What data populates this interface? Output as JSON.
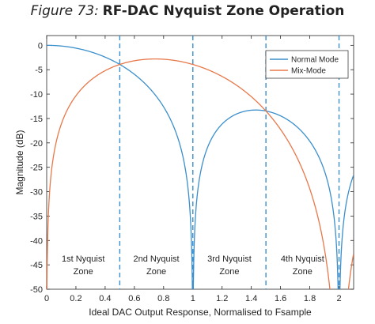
{
  "figure": {
    "label": "Figure 73:",
    "title": "RF-DAC Nyquist Zone Operation"
  },
  "chart_data": {
    "type": "line",
    "xlabel": "Ideal DAC Output Response, Normalised to Fsample",
    "ylabel": "Magnitude (dB)",
    "xlim": [
      0,
      2.1
    ],
    "ylim": [
      -50,
      2
    ],
    "x_ticks": [
      "0",
      "0.2",
      "0.4",
      "0.6",
      "0.8",
      "1",
      "1.2",
      "1.4",
      "1.6",
      "1.8",
      "2"
    ],
    "y_ticks": [
      "0",
      "-5",
      "-10",
      "-15",
      "-20",
      "-25",
      "-30",
      "-35",
      "-40",
      "-45",
      "-50"
    ],
    "grid": false,
    "legend_position": "top-right",
    "series": [
      {
        "name": "Normal Mode",
        "color": "#3b8fcc",
        "x_range": [
          0.001,
          2.1
        ],
        "step": 0.0025
      },
      {
        "name": "Mix-Mode",
        "color": "#e8784a",
        "x_range": [
          0.001,
          2.1
        ],
        "step": 0.0025
      }
    ],
    "zone_boundaries": [
      0.5,
      1.0,
      1.5,
      2.0
    ],
    "zones": [
      {
        "line1": "1st Nyquist",
        "line2": "Zone",
        "x": 0.25
      },
      {
        "line1": "2nd Nyquist",
        "line2": "Zone",
        "x": 0.75
      },
      {
        "line1": "3rd Nyquist",
        "line2": "Zone",
        "x": 1.25
      },
      {
        "line1": "4th Nyquist",
        "line2": "Zone",
        "x": 1.75
      }
    ],
    "colors": {
      "boundary": "#3b8fcc",
      "axes": "#262626"
    }
  }
}
